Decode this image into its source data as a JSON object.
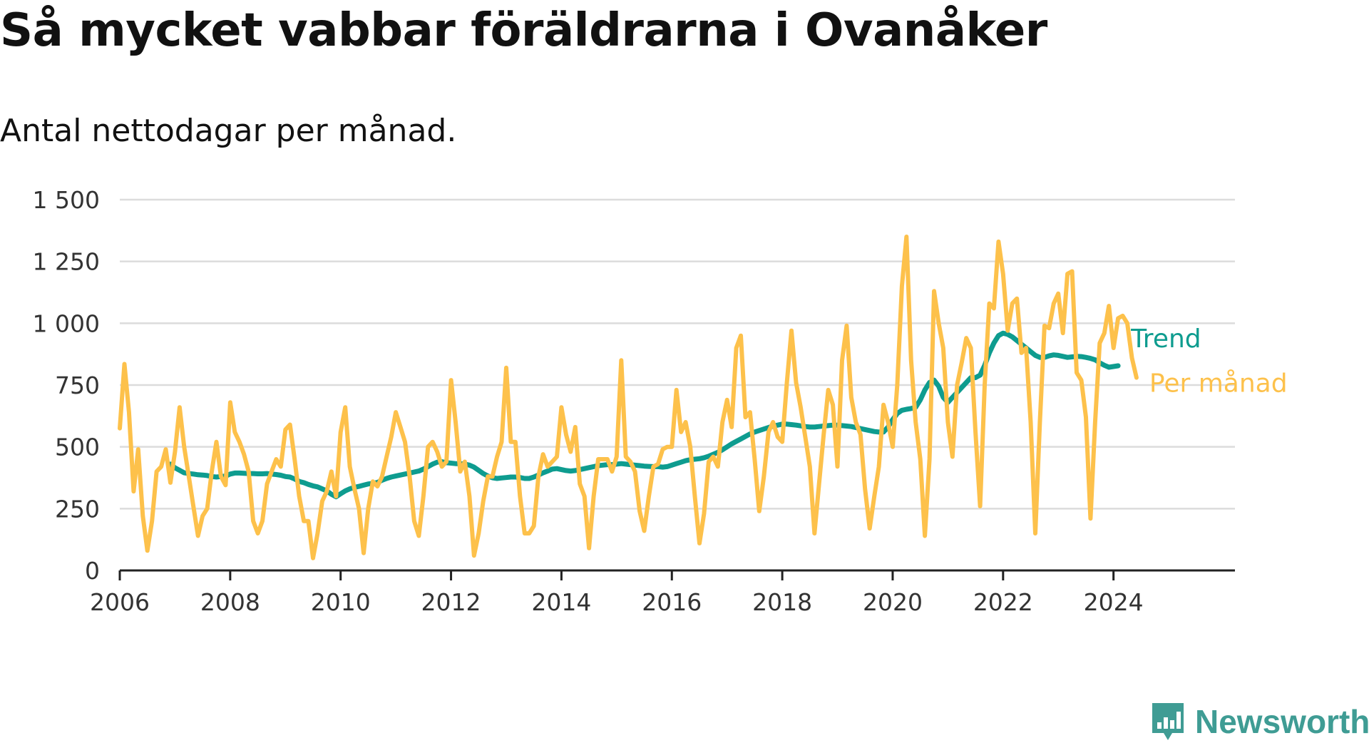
{
  "title": "Så mycket vabbar föräldrarna i Ovanåker",
  "subtitle": "Antal nettodagar per månad.",
  "brand": {
    "name": "Newsworthy",
    "icon": "newsworthy-logo-icon",
    "color": "#3f9c94"
  },
  "chart_data": {
    "type": "line",
    "title": "Så mycket vabbar föräldrarna i Ovanåker",
    "subtitle": "Antal nettodagar per månad.",
    "xlabel": "",
    "ylabel": "",
    "ylim": [
      0,
      1500
    ],
    "yticks": [
      0,
      250,
      500,
      750,
      1000,
      1250,
      1500
    ],
    "ytick_labels": [
      "0",
      "250",
      "500",
      "750",
      "1 000",
      "1 250",
      "1 500"
    ],
    "xlim": [
      2006,
      2026.2
    ],
    "xticks": [
      2006,
      2008,
      2010,
      2012,
      2014,
      2016,
      2018,
      2020,
      2022,
      2024
    ],
    "xtick_labels": [
      "2006",
      "2008",
      "2010",
      "2012",
      "2014",
      "2016",
      "2018",
      "2020",
      "2022",
      "2024"
    ],
    "grid": true,
    "legend": "direct labels at line ends (right)",
    "series": [
      {
        "name": "Per månad",
        "color": "#fdc14b",
        "start": "2006-01",
        "values": [
          575,
          835,
          640,
          320,
          490,
          220,
          80,
          200,
          400,
          420,
          490,
          355,
          480,
          660,
          500,
          380,
          260,
          140,
          220,
          250,
          400,
          520,
          380,
          345,
          680,
          560,
          520,
          470,
          400,
          200,
          150,
          200,
          350,
          400,
          450,
          420,
          570,
          590,
          450,
          300,
          200,
          200,
          50,
          150,
          280,
          320,
          400,
          300,
          560,
          660,
          420,
          330,
          250,
          70,
          250,
          360,
          340,
          380,
          460,
          540,
          640,
          580,
          520,
          380,
          200,
          140,
          300,
          500,
          520,
          480,
          420,
          440,
          770,
          600,
          400,
          440,
          300,
          60,
          150,
          280,
          380,
          380,
          460,
          520,
          820,
          520,
          520,
          300,
          150,
          150,
          180,
          380,
          470,
          420,
          440,
          460,
          660,
          550,
          480,
          580,
          350,
          300,
          90,
          300,
          450,
          450,
          450,
          400,
          460,
          850,
          460,
          440,
          400,
          240,
          160,
          300,
          420,
          430,
          490,
          500,
          500,
          730,
          560,
          600,
          500,
          300,
          110,
          230,
          440,
          460,
          420,
          600,
          690,
          580,
          900,
          950,
          620,
          640,
          450,
          240,
          380,
          560,
          600,
          540,
          520,
          760,
          970,
          760,
          660,
          540,
          420,
          150,
          350,
          550,
          730,
          670,
          420,
          850,
          990,
          700,
          600,
          550,
          330,
          170,
          300,
          420,
          670,
          600,
          500,
          750,
          1150,
          1350,
          850,
          600,
          450,
          140,
          450,
          1130,
          1000,
          900,
          600,
          460,
          750,
          840,
          940,
          900,
          560,
          260,
          750,
          1080,
          1060,
          1330,
          1200,
          970,
          1080,
          1100,
          880,
          900,
          600,
          150,
          600,
          990,
          980,
          1080,
          1120,
          960,
          1200,
          1210,
          800,
          770,
          620,
          210,
          600,
          920,
          960,
          1070,
          900,
          1020,
          1030,
          1000,
          860,
          780
        ]
      },
      {
        "name": "Trend",
        "color": "#0e9c8f",
        "start": "2006-12",
        "values": [
          430,
          415,
          405,
          395,
          392,
          390,
          387,
          386,
          384,
          380,
          378,
          380,
          382,
          390,
          394,
          394,
          393,
          392,
          392,
          391,
          391,
          392,
          390,
          388,
          385,
          380,
          378,
          370,
          360,
          355,
          348,
          342,
          338,
          330,
          322,
          308,
          298,
          310,
          322,
          330,
          336,
          340,
          345,
          350,
          352,
          356,
          365,
          372,
          378,
          382,
          386,
          390,
          394,
          398,
          402,
          410,
          420,
          430,
          438,
          440,
          436,
          434,
          432,
          432,
          430,
          426,
          418,
          405,
          392,
          382,
          375,
          372,
          374,
          376,
          378,
          378,
          376,
          372,
          372,
          378,
          386,
          395,
          402,
          410,
          412,
          408,
          404,
          402,
          404,
          408,
          412,
          416,
          420,
          424,
          426,
          428,
          428,
          430,
          432,
          430,
          428,
          426,
          424,
          422,
          421,
          420,
          420,
          418,
          420,
          426,
          432,
          438,
          444,
          448,
          450,
          452,
          456,
          462,
          470,
          478,
          488,
          500,
          512,
          522,
          532,
          542,
          552,
          560,
          566,
          572,
          578,
          584,
          588,
          592,
          592,
          590,
          588,
          585,
          582,
          580,
          580,
          582,
          584,
          586,
          588,
          588,
          586,
          584,
          582,
          578,
          574,
          570,
          566,
          562,
          560,
          560,
          580,
          610,
          635,
          648,
          652,
          655,
          660,
          690,
          730,
          760,
          770,
          745,
          700,
          680,
          700,
          720,
          740,
          760,
          780,
          780,
          790,
          830,
          880,
          920,
          950,
          960,
          955,
          945,
          930,
          915,
          900,
          885,
          870,
          862,
          862,
          868,
          872,
          870,
          866,
          862,
          864,
          866,
          865,
          862,
          858,
          852,
          840,
          830,
          822,
          825,
          828
        ]
      }
    ]
  }
}
